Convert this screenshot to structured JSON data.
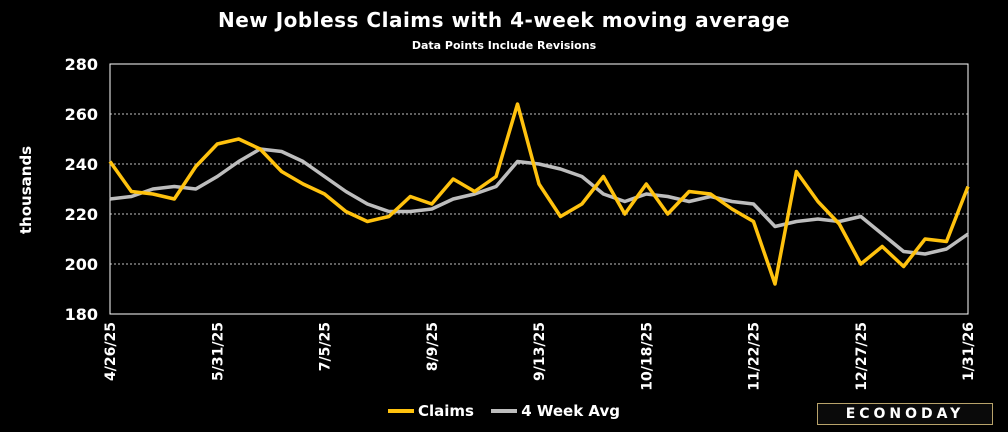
{
  "chart_data": {
    "type": "line",
    "title": "New Jobless Claims with 4-week moving average",
    "subtitle": "Data Points Include Revisions",
    "ylabel": "thousands",
    "xlabel": "",
    "ylim": [
      180,
      280
    ],
    "yticks": [
      180,
      200,
      220,
      240,
      260,
      280
    ],
    "grid": true,
    "legend_position": "bottom",
    "x_tick_labels": [
      "4/26/25",
      "5/31/25",
      "7/5/25",
      "8/9/25",
      "9/13/25",
      "10/18/25",
      "11/22/25",
      "12/27/25",
      "1/31/26"
    ],
    "x_tick_every": 5,
    "series": [
      {
        "name": "Claims",
        "color": "#ffc20e",
        "values": [
          241,
          229,
          228,
          226,
          239,
          248,
          250,
          246,
          237,
          232,
          228,
          221,
          217,
          219,
          227,
          224,
          234,
          229,
          235,
          264,
          232,
          219,
          224,
          235,
          220,
          232,
          220,
          229,
          228,
          222,
          217,
          192,
          237,
          225,
          216,
          200,
          207,
          199,
          210,
          209,
          231
        ]
      },
      {
        "name": "4 Week Avg",
        "color": "#bdbdbd",
        "values": [
          226,
          227,
          230,
          231,
          230,
          235,
          241,
          246,
          245,
          241,
          235,
          229,
          224,
          221,
          221,
          222,
          226,
          228,
          231,
          241,
          240,
          238,
          235,
          228,
          225,
          228,
          227,
          225,
          227,
          225,
          224,
          215,
          217,
          218,
          217,
          219,
          212,
          205,
          204,
          206,
          212
        ]
      }
    ]
  },
  "legend": {
    "claims_label": "Claims",
    "avg_label": "4 Week Avg"
  },
  "brand": {
    "label": "ECONODAY"
  }
}
